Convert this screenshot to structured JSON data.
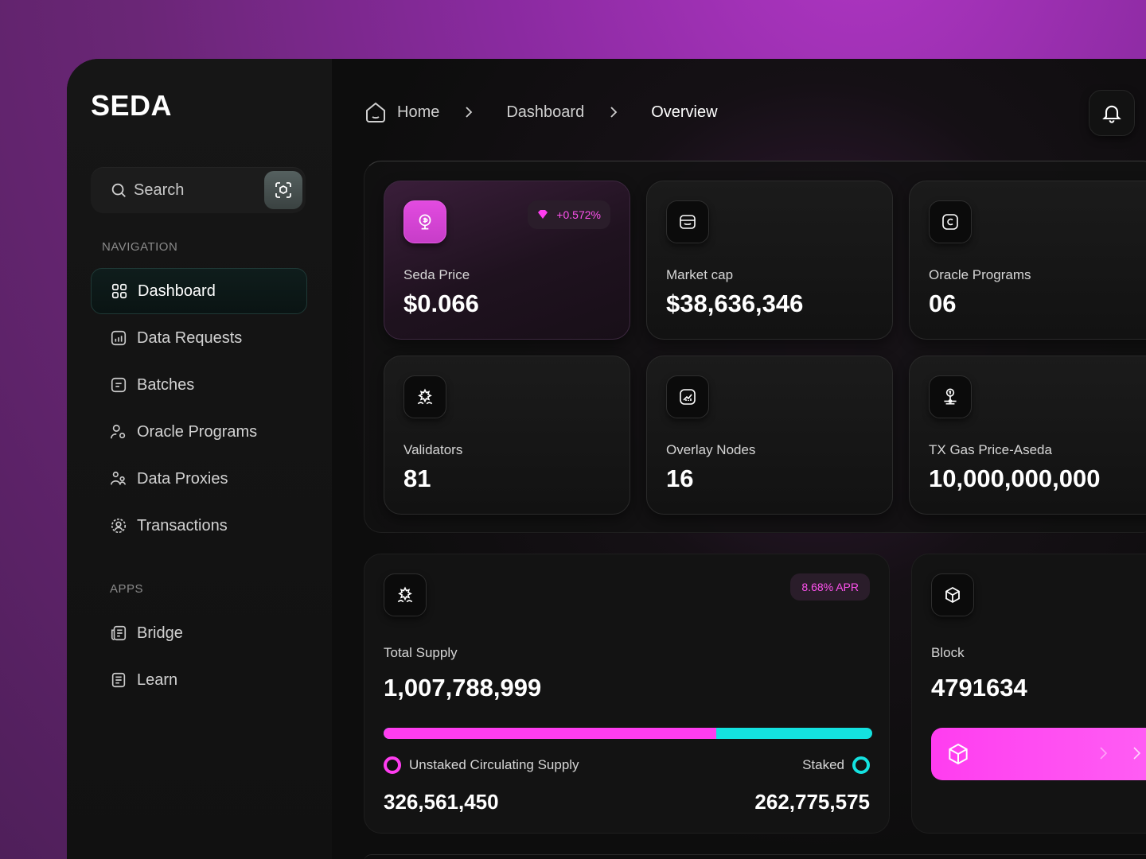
{
  "app": {
    "logo": "SEDA"
  },
  "search": {
    "placeholder": "Search"
  },
  "sidebar": {
    "navigation_label": "NAVIGATION",
    "items": [
      {
        "label": "Dashboard",
        "icon": "grid-icon",
        "active": true
      },
      {
        "label": "Data Requests",
        "icon": "chart-icon",
        "active": false
      },
      {
        "label": "Batches",
        "icon": "document-icon",
        "active": false
      },
      {
        "label": "Oracle Programs",
        "icon": "user-gear-icon",
        "active": false
      },
      {
        "label": "Data Proxies",
        "icon": "users-icon",
        "active": false
      },
      {
        "label": "Transactions",
        "icon": "user-circle-icon",
        "active": false
      }
    ],
    "apps_label": "APPS",
    "apps": [
      {
        "label": "Bridge",
        "icon": "newspaper-icon"
      },
      {
        "label": "Learn",
        "icon": "book-icon"
      }
    ]
  },
  "breadcrumb": {
    "home": "Home",
    "dashboard": "Dashboard",
    "current": "Overview"
  },
  "stats": [
    {
      "label": "Seda Price",
      "value": "$0.066",
      "badge": "+0.572%",
      "icon": "coin-icon"
    },
    {
      "label": "Market cap",
      "value": "$38,636,346",
      "icon": "store-icon"
    },
    {
      "label": "Oracle Programs",
      "value": "06",
      "icon": "copyright-icon"
    },
    {
      "label": "Validators",
      "value": "81",
      "icon": "sprout-icon"
    },
    {
      "label": "Overlay Nodes",
      "value": "16",
      "icon": "chart-up-icon"
    },
    {
      "label": "TX Gas Price-Aseda",
      "value": "10,000,000,000",
      "icon": "gas-icon"
    }
  ],
  "supply": {
    "label": "Total Supply",
    "value": "1,007,788,999",
    "apr": "8.68% APR",
    "unstaked_label": "Unstaked Circulating Supply",
    "unstaked_value": "326,561,450",
    "staked_label": "Staked",
    "staked_value": "262,775,575",
    "unstaked_fraction": 0.68
  },
  "block": {
    "label": "Block",
    "value": "4791634"
  },
  "colors": {
    "accent_pink": "#ff3df0",
    "accent_cyan": "#14e2e0"
  }
}
